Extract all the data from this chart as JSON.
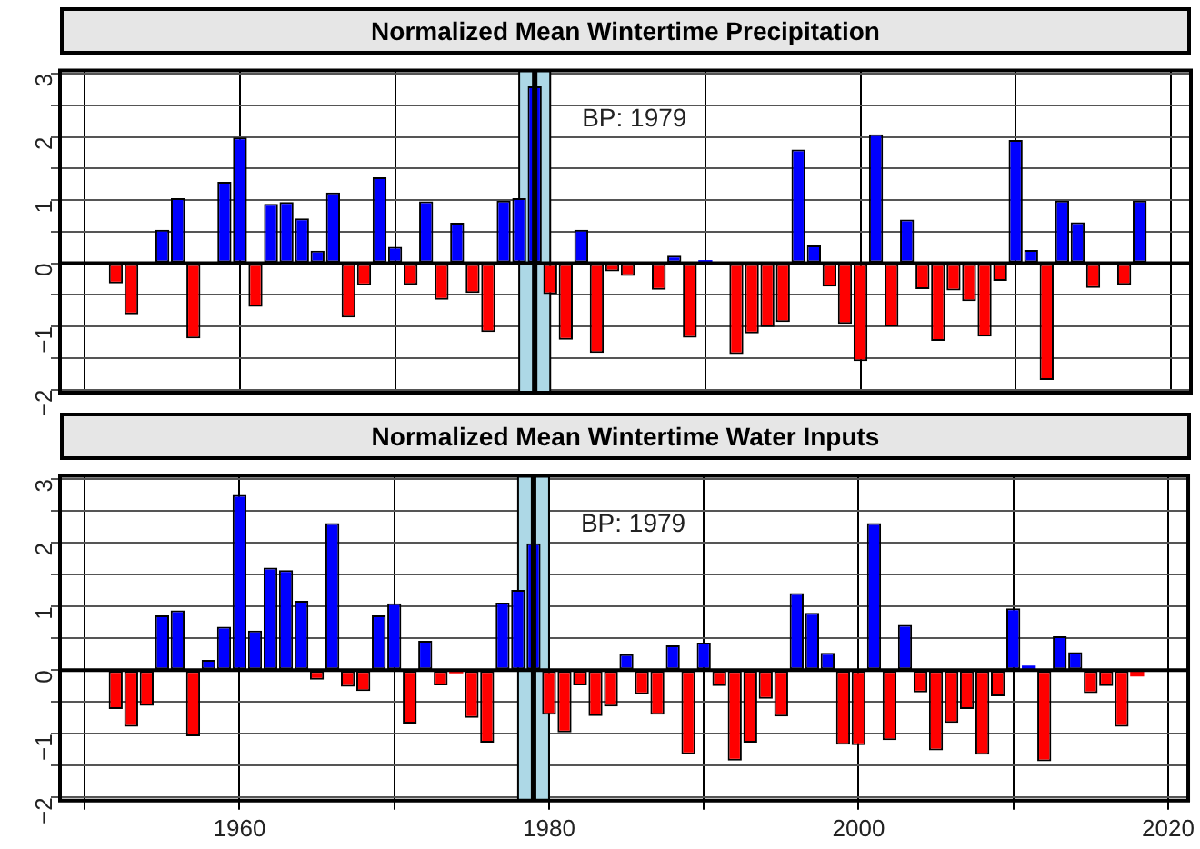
{
  "chart_data": [
    {
      "type": "bar",
      "title": "Normalized Mean Wintertime Precipitation",
      "tick_labels": "y",
      "grid": true,
      "x": [
        1952,
        1953,
        1954,
        1955,
        1956,
        1957,
        1958,
        1959,
        1960,
        1961,
        1962,
        1963,
        1964,
        1965,
        1966,
        1967,
        1968,
        1969,
        1970,
        1971,
        1972,
        1973,
        1974,
        1975,
        1976,
        1977,
        1978,
        1979,
        1980,
        1981,
        1982,
        1983,
        1984,
        1985,
        1986,
        1987,
        1988,
        1989,
        1990,
        1991,
        1992,
        1993,
        1994,
        1995,
        1996,
        1997,
        1998,
        1999,
        2000,
        2001,
        2002,
        2003,
        2004,
        2005,
        2006,
        2007,
        2008,
        2009,
        2010,
        2011,
        2012,
        2013,
        2014,
        2015,
        2016,
        2017,
        2018
      ],
      "values": [
        -0.32,
        -0.81,
        null,
        0.53,
        1.03,
        -1.19,
        0,
        1.29,
        1.99,
        -0.69,
        0.94,
        0.97,
        0.71,
        0.2,
        1.12,
        -0.86,
        -0.35,
        1.36,
        0.26,
        -0.34,
        0.98,
        -0.58,
        0.64,
        -0.47,
        -1.09,
        0.99,
        1.03,
        2.8,
        -0.49,
        -1.21,
        0.53,
        -1.42,
        -0.13,
        -0.2,
        null,
        -0.42,
        0.12,
        -1.18,
        0.05,
        0,
        -1.44,
        -1.11,
        -1.01,
        -0.93,
        1.8,
        0.28,
        -0.37,
        -0.96,
        -1.55,
        2.04,
        -1.0,
        0.69,
        -0.41,
        -1.23,
        -0.43,
        -0.6,
        -1.16,
        -0.28,
        1.95,
        0.21,
        -1.85,
        0.99,
        0.65,
        -0.39,
        0,
        -0.34,
        0.99
      ],
      "colors": [
        "#ff0000",
        "#ff0000",
        "#ff0000",
        "#0000ff",
        "#0000ff",
        "#ff0000",
        "#0000ff",
        "#0000ff",
        "#0000ff",
        "#ff0000",
        "#0000ff",
        "#0000ff",
        "#0000ff",
        "#0000ff",
        "#0000ff",
        "#ff0000",
        "#ff0000",
        "#0000ff",
        "#0000ff",
        "#ff0000",
        "#0000ff",
        "#ff0000",
        "#0000ff",
        "#ff0000",
        "#ff0000",
        "#0000ff",
        "#0000ff",
        "#0000ff",
        "#ff0000",
        "#ff0000",
        "#0000ff",
        "#ff0000",
        "#ff0000",
        "#ff0000",
        "#ff0000",
        "#ff0000",
        "#0000ff",
        "#ff0000",
        "#0000ff",
        "#0000ff",
        "#ff0000",
        "#ff0000",
        "#ff0000",
        "#ff0000",
        "#0000ff",
        "#0000ff",
        "#ff0000",
        "#ff0000",
        "#ff0000",
        "#0000ff",
        "#ff0000",
        "#0000ff",
        "#ff0000",
        "#ff0000",
        "#ff0000",
        "#ff0000",
        "#ff0000",
        "#ff0000",
        "#0000ff",
        "#0000ff",
        "#ff0000",
        "#0000ff",
        "#0000ff",
        "#ff0000",
        "#0000ff",
        "#ff0000",
        "#0000ff"
      ],
      "xlim": [
        1948.4,
        2021.3
      ],
      "xticks": [
        {
          "value": 1950,
          "label": null
        },
        {
          "value": 1960,
          "label": null
        },
        {
          "value": 1970,
          "label": null
        },
        {
          "value": 1980,
          "label": null
        },
        {
          "value": 1990,
          "label": null
        },
        {
          "value": 2000,
          "label": null
        },
        {
          "value": 2010,
          "label": null
        },
        {
          "value": 2020,
          "label": null
        }
      ],
      "ylim": [
        -2.05,
        3.05
      ],
      "yticks": [
        -2,
        {
          "value": -1.5,
          "label": null
        },
        -1,
        {
          "value": -0.5,
          "label": null
        },
        0,
        {
          "value": 0.5,
          "label": null
        },
        1,
        {
          "value": 1.5,
          "label": null
        },
        2,
        {
          "value": 2.5,
          "label": null
        },
        3
      ],
      "bands": [
        {
          "axis": "x",
          "from": 1978,
          "to": 1980,
          "color": "#add8e6"
        }
      ],
      "ref_lines": [
        {
          "axis": "x",
          "value": 1979,
          "label": "BP: 1979",
          "color": "#000000"
        }
      ]
    },
    {
      "type": "bar",
      "title": "Normalized Mean Wintertime Water Inputs",
      "grid": true,
      "x": [
        1952,
        1953,
        1954,
        1955,
        1956,
        1957,
        1958,
        1959,
        1960,
        1961,
        1962,
        1963,
        1964,
        1965,
        1966,
        1967,
        1968,
        1969,
        1970,
        1971,
        1972,
        1973,
        1974,
        1975,
        1976,
        1977,
        1978,
        1979,
        1980,
        1981,
        1982,
        1983,
        1984,
        1985,
        1986,
        1987,
        1988,
        1989,
        1990,
        1991,
        1992,
        1993,
        1994,
        1995,
        1996,
        1997,
        1998,
        1999,
        2000,
        2001,
        2002,
        2003,
        2004,
        2005,
        2006,
        2007,
        2008,
        2009,
        2010,
        2011,
        2012,
        2013,
        2014,
        2015,
        2016,
        2017,
        2018
      ],
      "values": [
        -0.61,
        -0.89,
        -0.56,
        0.86,
        0.94,
        -1.04,
        0.16,
        0.68,
        2.75,
        0.62,
        1.61,
        1.57,
        1.09,
        -0.15,
        2.31,
        -0.26,
        -0.33,
        0.86,
        1.05,
        -0.84,
        0.46,
        -0.24,
        -0.05,
        -0.75,
        -1.14,
        1.06,
        1.26,
        1.99,
        -0.7,
        -0.98,
        -0.24,
        -0.72,
        -0.57,
        0.25,
        -0.38,
        -0.7,
        0.39,
        -1.32,
        0.43,
        -0.25,
        -1.42,
        -1.14,
        -0.45,
        -0.73,
        1.21,
        0.9,
        0.27,
        -1.17,
        -1.18,
        2.31,
        -1.1,
        0.71,
        -0.35,
        -1.26,
        -0.83,
        -0.61,
        -1.33,
        -0.41,
        0.97,
        0.07,
        -1.43,
        0.53,
        0.28,
        -0.36,
        -0.25,
        -0.89,
        -0.1
      ],
      "colors": [
        "#ff0000",
        "#ff0000",
        "#ff0000",
        "#0000ff",
        "#0000ff",
        "#ff0000",
        "#0000ff",
        "#0000ff",
        "#0000ff",
        "#0000ff",
        "#0000ff",
        "#0000ff",
        "#0000ff",
        "#ff0000",
        "#0000ff",
        "#ff0000",
        "#ff0000",
        "#0000ff",
        "#0000ff",
        "#ff0000",
        "#0000ff",
        "#ff0000",
        "#ff0000",
        "#ff0000",
        "#ff0000",
        "#0000ff",
        "#0000ff",
        "#0000ff",
        "#ff0000",
        "#ff0000",
        "#ff0000",
        "#ff0000",
        "#ff0000",
        "#0000ff",
        "#ff0000",
        "#ff0000",
        "#0000ff",
        "#ff0000",
        "#0000ff",
        "#ff0000",
        "#ff0000",
        "#ff0000",
        "#ff0000",
        "#ff0000",
        "#0000ff",
        "#0000ff",
        "#0000ff",
        "#ff0000",
        "#ff0000",
        "#0000ff",
        "#ff0000",
        "#0000ff",
        "#ff0000",
        "#ff0000",
        "#ff0000",
        "#ff0000",
        "#ff0000",
        "#ff0000",
        "#0000ff",
        "#0000ff",
        "#ff0000",
        "#0000ff",
        "#0000ff",
        "#ff0000",
        "#ff0000",
        "#ff0000",
        "#ff0000"
      ],
      "xlim": [
        1948.4,
        2021.3
      ],
      "xticks": [
        {
          "value": 1950,
          "label": null
        },
        {
          "value": 1960,
          "label": "1960"
        },
        {
          "value": 1970,
          "label": null
        },
        {
          "value": 1980,
          "label": "1980"
        },
        {
          "value": 1990,
          "label": null
        },
        {
          "value": 2000,
          "label": "2000"
        },
        {
          "value": 2010,
          "label": null
        },
        {
          "value": 2020,
          "label": "2020"
        }
      ],
      "ylim": [
        -2.05,
        3.05
      ],
      "yticks": [
        -2,
        {
          "value": -1.5,
          "label": null
        },
        -1,
        {
          "value": -0.5,
          "label": null
        },
        0,
        {
          "value": 0.5,
          "label": null
        },
        1,
        {
          "value": 1.5,
          "label": null
        },
        2,
        {
          "value": 2.5,
          "label": null
        },
        3
      ],
      "bands": [
        {
          "axis": "x",
          "from": 1978,
          "to": 1980,
          "color": "#add8e6"
        }
      ],
      "ref_lines": [
        {
          "axis": "x",
          "value": 1979,
          "label": "BP: 1979",
          "color": "#000000"
        }
      ]
    }
  ]
}
